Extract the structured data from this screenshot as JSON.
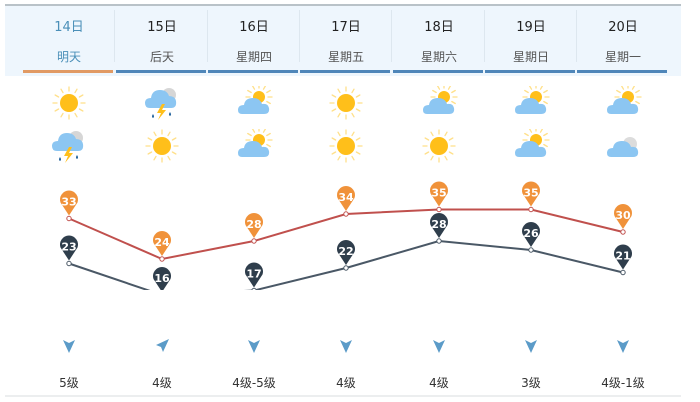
{
  "days": [
    {
      "date": "14日",
      "day": "明天",
      "active": true,
      "icon_day": "sunny-icon",
      "icon_night": "thunderstorm-icon",
      "high": 33,
      "low": 23,
      "wind_dir": "south-wind-icon",
      "wind_level": "5级"
    },
    {
      "date": "15日",
      "day": "后天",
      "active": false,
      "icon_day": "thunderstorm-icon",
      "icon_night": "sunny-icon",
      "high": 24,
      "low": 16,
      "wind_dir": "northeast-wind-icon",
      "wind_level": "4级"
    },
    {
      "date": "16日",
      "day": "星期四",
      "active": false,
      "icon_day": "partly-cloudy-icon",
      "icon_night": "partly-cloudy-icon",
      "high": 28,
      "low": 17,
      "wind_dir": "south-wind-icon",
      "wind_level": "4级-5级"
    },
    {
      "date": "17日",
      "day": "星期五",
      "active": false,
      "icon_day": "sunny-icon",
      "icon_night": "sunny-icon",
      "high": 34,
      "low": 22,
      "wind_dir": "south-wind-icon",
      "wind_level": "4级"
    },
    {
      "date": "18日",
      "day": "星期六",
      "active": false,
      "icon_day": "partly-cloudy-icon",
      "icon_night": "sunny-icon",
      "high": 35,
      "low": 28,
      "wind_dir": "south-wind-icon",
      "wind_level": "4级"
    },
    {
      "date": "19日",
      "day": "星期日",
      "active": false,
      "icon_day": "partly-cloudy-icon",
      "icon_night": "partly-cloudy-icon",
      "high": 35,
      "low": 26,
      "wind_dir": "south-wind-icon",
      "wind_level": "3级"
    },
    {
      "date": "20日",
      "day": "星期一",
      "active": false,
      "icon_day": "partly-cloudy-icon",
      "icon_night": "cloudy-icon",
      "high": 30,
      "low": 21,
      "wind_dir": "south-wind-icon",
      "wind_level": "4级-1级"
    }
  ],
  "colors": {
    "high_line": "#c0504d",
    "high_pin": "#f0923a",
    "low_line": "#4a5866",
    "low_pin": "#2f3e4c",
    "active_underline": "#e19a64",
    "underline": "#4f86b9",
    "wind_icon": "#5b9bc8"
  }
}
